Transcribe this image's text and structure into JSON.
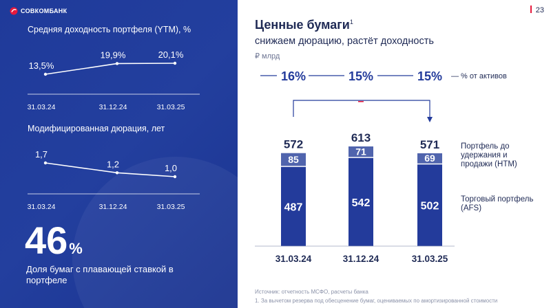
{
  "logo": {
    "text": "СОВКОМБАНК"
  },
  "page_number": "23",
  "left": {
    "ytm": {
      "title": "Средняя доходность портфеля (YTM), %",
      "labels": [
        "13,5%",
        "19,9%",
        "20,1%"
      ],
      "dates": [
        "31.03.24",
        "31.12.24",
        "31.03.25"
      ]
    },
    "duration": {
      "title": "Модифицированная дюрация, лет",
      "labels": [
        "1,7",
        "1,2",
        "1,0"
      ],
      "dates": [
        "31.03.24",
        "31.12.24",
        "31.03.25"
      ]
    },
    "big_value": "46",
    "big_unit": "%",
    "big_caption": "Доля бумаг с плавающей ставкой в портфеле"
  },
  "header": {
    "title": "Ценные бумаги",
    "title_sup": "1",
    "subtitle": "снижаем дюрацию, растёт доходность",
    "unit": "₽ млрд"
  },
  "share_row": {
    "values": [
      "16%",
      "15%",
      "15%"
    ],
    "legend": "— % от активов"
  },
  "legend": {
    "hold": "Портфель до удержания и продажи (HTM)",
    "trade": "Торговый портфель (AFS)"
  },
  "footer": {
    "source": "Источник: отчетность МСФО, расчеты банка",
    "note": "1.    За вычетом резерва под обесценение бумаг, оцениваемых по амортизированной стоимости"
  },
  "colors": {
    "navy": "#233b9b",
    "htm": "#5064ad",
    "accent": "#e6193c"
  },
  "chart_data": {
    "type": "bar",
    "categories": [
      "31.03.24",
      "31.12.24",
      "31.03.25"
    ],
    "series": [
      {
        "values": [
          487,
          542,
          502
        ]
      },
      {
        "values": [
          85,
          71,
          69
        ]
      }
    ],
    "totals": [
      572,
      613,
      571
    ],
    "change_marker": "–"
  },
  "ytm_chart": {
    "type": "line",
    "x": [
      "31.03.24",
      "31.12.24",
      "31.03.25"
    ],
    "values": [
      13.5,
      19.9,
      20.1
    ]
  },
  "duration_chart": {
    "type": "line",
    "x": [
      "31.03.24",
      "31.12.24",
      "31.03.25"
    ],
    "values": [
      1.7,
      1.2,
      1.0
    ]
  }
}
